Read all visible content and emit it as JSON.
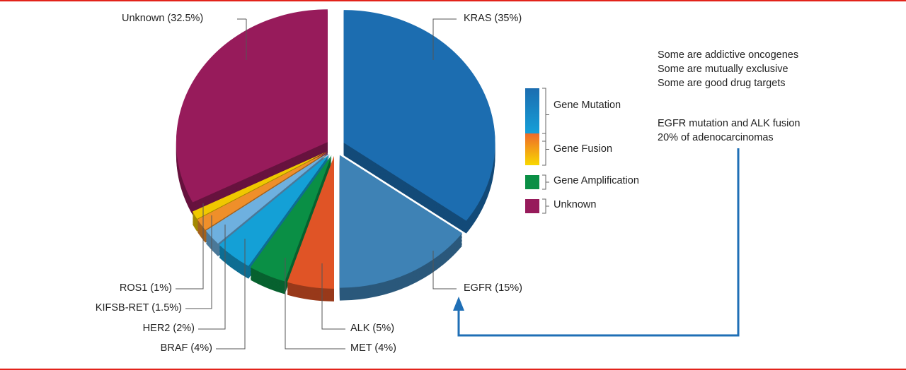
{
  "chart_data": {
    "type": "pie",
    "style": "3d-exploded",
    "slices": [
      {
        "label": "KRAS (35%)",
        "name": "KRAS",
        "value": 35,
        "color": "#1c6db0",
        "group": "Gene Mutation"
      },
      {
        "label": "EGFR (15%)",
        "name": "EGFR",
        "value": 15,
        "color": "#3e82b5",
        "group": "Gene Mutation"
      },
      {
        "label": "ALK (5%)",
        "name": "ALK",
        "value": 5,
        "color": "#e05426",
        "group": "Gene Fusion"
      },
      {
        "label": "MET (4%)",
        "name": "MET",
        "value": 4,
        "color": "#0a8f45",
        "group": "Gene Amplification"
      },
      {
        "label": "BRAF (4%)",
        "name": "BRAF",
        "value": 4,
        "color": "#14a0d6",
        "group": "Gene Mutation"
      },
      {
        "label": "HER2 (2%)",
        "name": "HER2",
        "value": 2,
        "color": "#6eb0df",
        "group": "Gene Mutation"
      },
      {
        "label": "KIFSB-RET (1.5%)",
        "name": "KIFSB-RET",
        "value": 1.5,
        "color": "#ef8f2a",
        "group": "Gene Fusion"
      },
      {
        "label": "ROS1 (1%)",
        "name": "ROS1",
        "value": 1,
        "color": "#f0c800",
        "group": "Gene Fusion"
      },
      {
        "label": "Unknown (32.5%)",
        "name": "Unknown",
        "value": 32.5,
        "color": "#971b5b",
        "group": "Unknown"
      }
    ],
    "legend": {
      "placement": "right",
      "items": [
        {
          "label": "Gene Mutation",
          "colors": [
            "#1c6db0",
            "#14a8df"
          ]
        },
        {
          "label": "Gene Fusion",
          "colors": [
            "#ee6a2a",
            "#f8d800"
          ]
        },
        {
          "label": "Gene Amplification",
          "colors": [
            "#0a8f45",
            "#0a8f45"
          ]
        },
        {
          "label": "Unknown",
          "colors": [
            "#971b5b",
            "#971b5b"
          ]
        }
      ]
    }
  },
  "notes": {
    "lines1": [
      "Some are addictive oncogenes",
      "Some are mutually exclusive",
      "Some are good drug targets"
    ],
    "lines2": [
      "EGFR mutation and ALK fusion",
      "20% of adenocarcinomas"
    ]
  },
  "colors": {
    "border": "#e2231a",
    "arrow": "#1f6fb6"
  }
}
